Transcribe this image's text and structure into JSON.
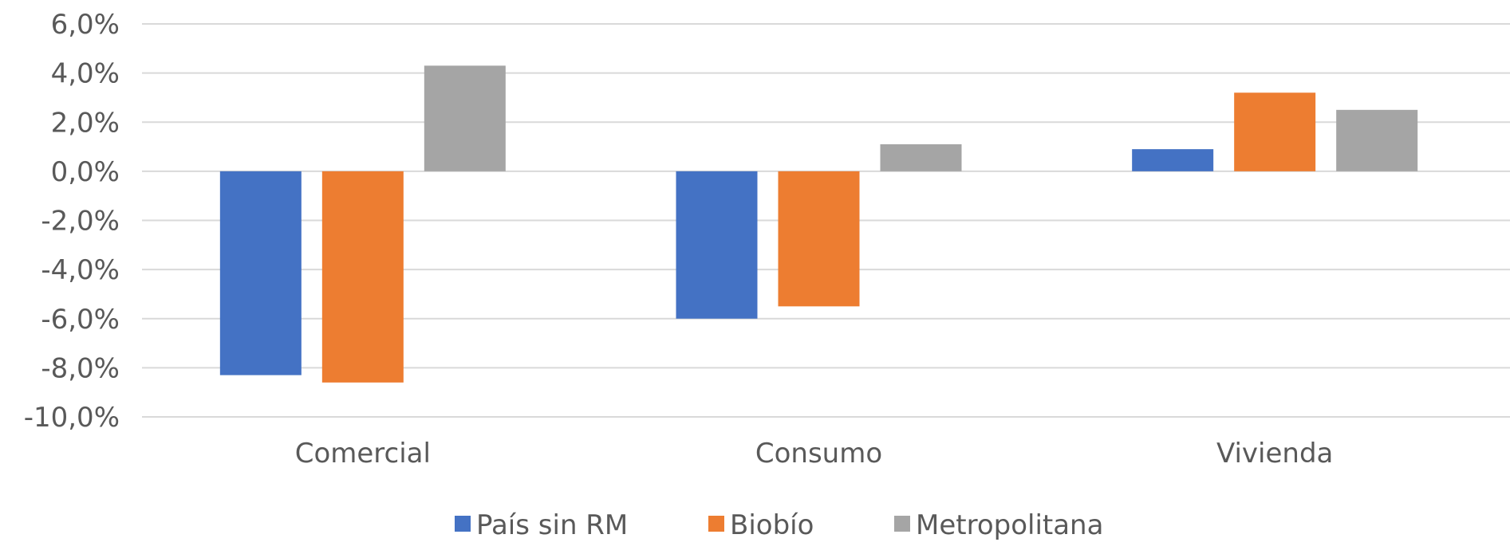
{
  "chart_data": {
    "type": "bar",
    "title": "",
    "xlabel": "",
    "ylabel": "",
    "categories": [
      "Comercial",
      "Consumo",
      "Vivienda"
    ],
    "series": [
      {
        "name": "País sin RM",
        "color": "#4472c4",
        "values": [
          -8.3,
          -6.0,
          0.9
        ]
      },
      {
        "name": "Biobío",
        "color": "#ed7d31",
        "values": [
          -8.6,
          -5.5,
          3.2
        ]
      },
      {
        "name": "Metropolitana",
        "color": "#a5a5a5",
        "values": [
          4.3,
          1.1,
          2.5
        ]
      }
    ],
    "ylim": [
      -10,
      6
    ],
    "yticks": [
      "6,0%",
      "4,0%",
      "2,0%",
      "0,0%",
      "-2,0%",
      "-4,0%",
      "-6,0%",
      "-8,0%",
      "-10,0%"
    ],
    "ytick_values": [
      6,
      4,
      2,
      0,
      -2,
      -4,
      -6,
      -8,
      -10
    ],
    "grid": true,
    "legend_position": "bottom"
  }
}
